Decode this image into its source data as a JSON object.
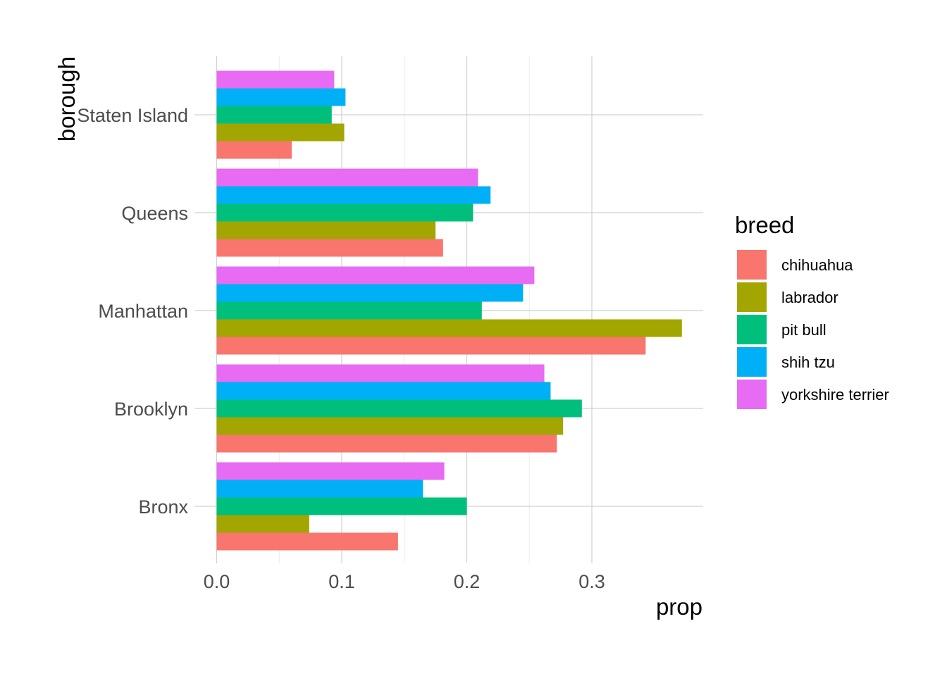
{
  "chart_data": {
    "type": "bar",
    "orientation": "horizontal",
    "categories": [
      "Bronx",
      "Brooklyn",
      "Manhattan",
      "Queens",
      "Staten Island"
    ],
    "series": [
      {
        "name": "chihuahua",
        "color": "#F8766D",
        "values": [
          0.145,
          0.272,
          0.343,
          0.181,
          0.06
        ]
      },
      {
        "name": "labrador",
        "color": "#A3A500",
        "values": [
          0.074,
          0.277,
          0.372,
          0.175,
          0.102
        ]
      },
      {
        "name": "pit bull",
        "color": "#00BF7D",
        "values": [
          0.2,
          0.292,
          0.212,
          0.205,
          0.092
        ]
      },
      {
        "name": "shih tzu",
        "color": "#00B0F6",
        "values": [
          0.165,
          0.267,
          0.245,
          0.219,
          0.103
        ]
      },
      {
        "name": "yorkshire terrier",
        "color": "#E76BF3",
        "values": [
          0.182,
          0.262,
          0.254,
          0.209,
          0.094
        ]
      }
    ],
    "xlabel": "prop",
    "ylabel": "borough",
    "xlim": [
      -0.02,
      0.39
    ],
    "xticks": [
      0.0,
      0.1,
      0.2,
      0.3
    ],
    "xtick_labels": [
      "0.0",
      "0.1",
      "0.2",
      "0.3"
    ],
    "grid": true,
    "legend": {
      "title": "breed",
      "position": "right"
    }
  }
}
